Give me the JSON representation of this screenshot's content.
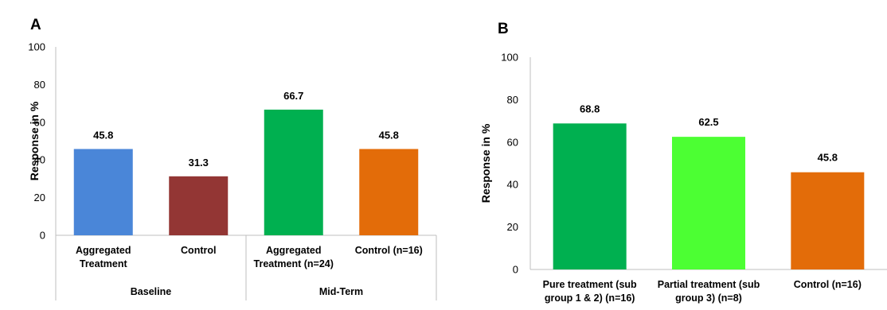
{
  "chart_data": [
    {
      "type": "bar",
      "panel_label": "A",
      "ylabel": "Response in %",
      "ylim": [
        0,
        100
      ],
      "yticks": [
        "0",
        "20",
        "40",
        "60",
        "80",
        "100"
      ],
      "grid": false,
      "groups": [
        {
          "name": "Baseline",
          "categories": [
            {
              "lines": [
                "Aggregated",
                "Treatment"
              ],
              "value": 45.8,
              "label": "45.8",
              "color": "#4a86d8"
            },
            {
              "lines": [
                "Control"
              ],
              "value": 31.3,
              "label": "31.3",
              "color": "#933634"
            }
          ]
        },
        {
          "name": "Mid-Term",
          "categories": [
            {
              "lines": [
                "Aggregated",
                "Treatment  (n=24)"
              ],
              "value": 66.7,
              "label": "66.7",
              "color": "#00b050"
            },
            {
              "lines": [
                "Control (n=16)"
              ],
              "value": 45.8,
              "label": "45.8",
              "color": "#e36c09"
            }
          ]
        }
      ]
    },
    {
      "type": "bar",
      "panel_label": "B",
      "ylabel": "Response in %",
      "ylim": [
        0,
        100
      ],
      "yticks": [
        "0",
        "20",
        "40",
        "60",
        "80",
        "100"
      ],
      "grid": false,
      "categories": [
        {
          "lines": [
            "Pure treatment (sub",
            "group 1 & 2) (n=16)"
          ],
          "value": 68.8,
          "label": "68.8",
          "color": "#00b050"
        },
        {
          "lines": [
            "Partial treatment (sub",
            "group 3) (n=8)"
          ],
          "value": 62.5,
          "label": "62.5",
          "color": "#4cff33"
        },
        {
          "lines": [
            "Control (n=16)"
          ],
          "value": 45.8,
          "label": "45.8",
          "color": "#e36c09"
        }
      ]
    }
  ]
}
